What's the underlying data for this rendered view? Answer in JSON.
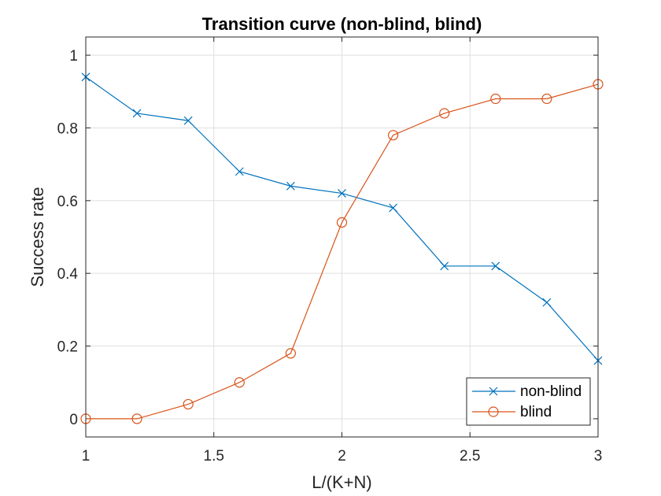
{
  "chart_data": {
    "type": "line",
    "title": "Transition curve (non-blind, blind)",
    "xlabel": "L/(K+N)",
    "ylabel": "Success rate",
    "xlim": [
      1,
      3
    ],
    "ylim": [
      -0.05,
      1.05
    ],
    "xticks": [
      1,
      1.5,
      2,
      2.5,
      3
    ],
    "xtick_labels": [
      "1",
      "1.5",
      "2",
      "2.5",
      "3"
    ],
    "yticks": [
      0,
      0.2,
      0.4,
      0.6,
      0.8,
      1
    ],
    "ytick_labels": [
      "0",
      "0.2",
      "0.4",
      "0.6",
      "0.8",
      "1"
    ],
    "grid": true,
    "legend_position": "bottom-right",
    "x": [
      1,
      1.2,
      1.4,
      1.6,
      1.8,
      2,
      2.2,
      2.4,
      2.6,
      2.8,
      3
    ],
    "series": [
      {
        "name": "non-blind",
        "values": [
          0.94,
          0.84,
          0.82,
          0.68,
          0.64,
          0.62,
          0.58,
          0.42,
          0.42,
          0.32,
          0.16
        ],
        "color": "#0072BD",
        "marker": "x"
      },
      {
        "name": "blind",
        "values": [
          0,
          0,
          0.04,
          0.1,
          0.18,
          0.54,
          0.78,
          0.84,
          0.88,
          0.88,
          0.92
        ],
        "color": "#D95319",
        "marker": "o"
      }
    ]
  }
}
